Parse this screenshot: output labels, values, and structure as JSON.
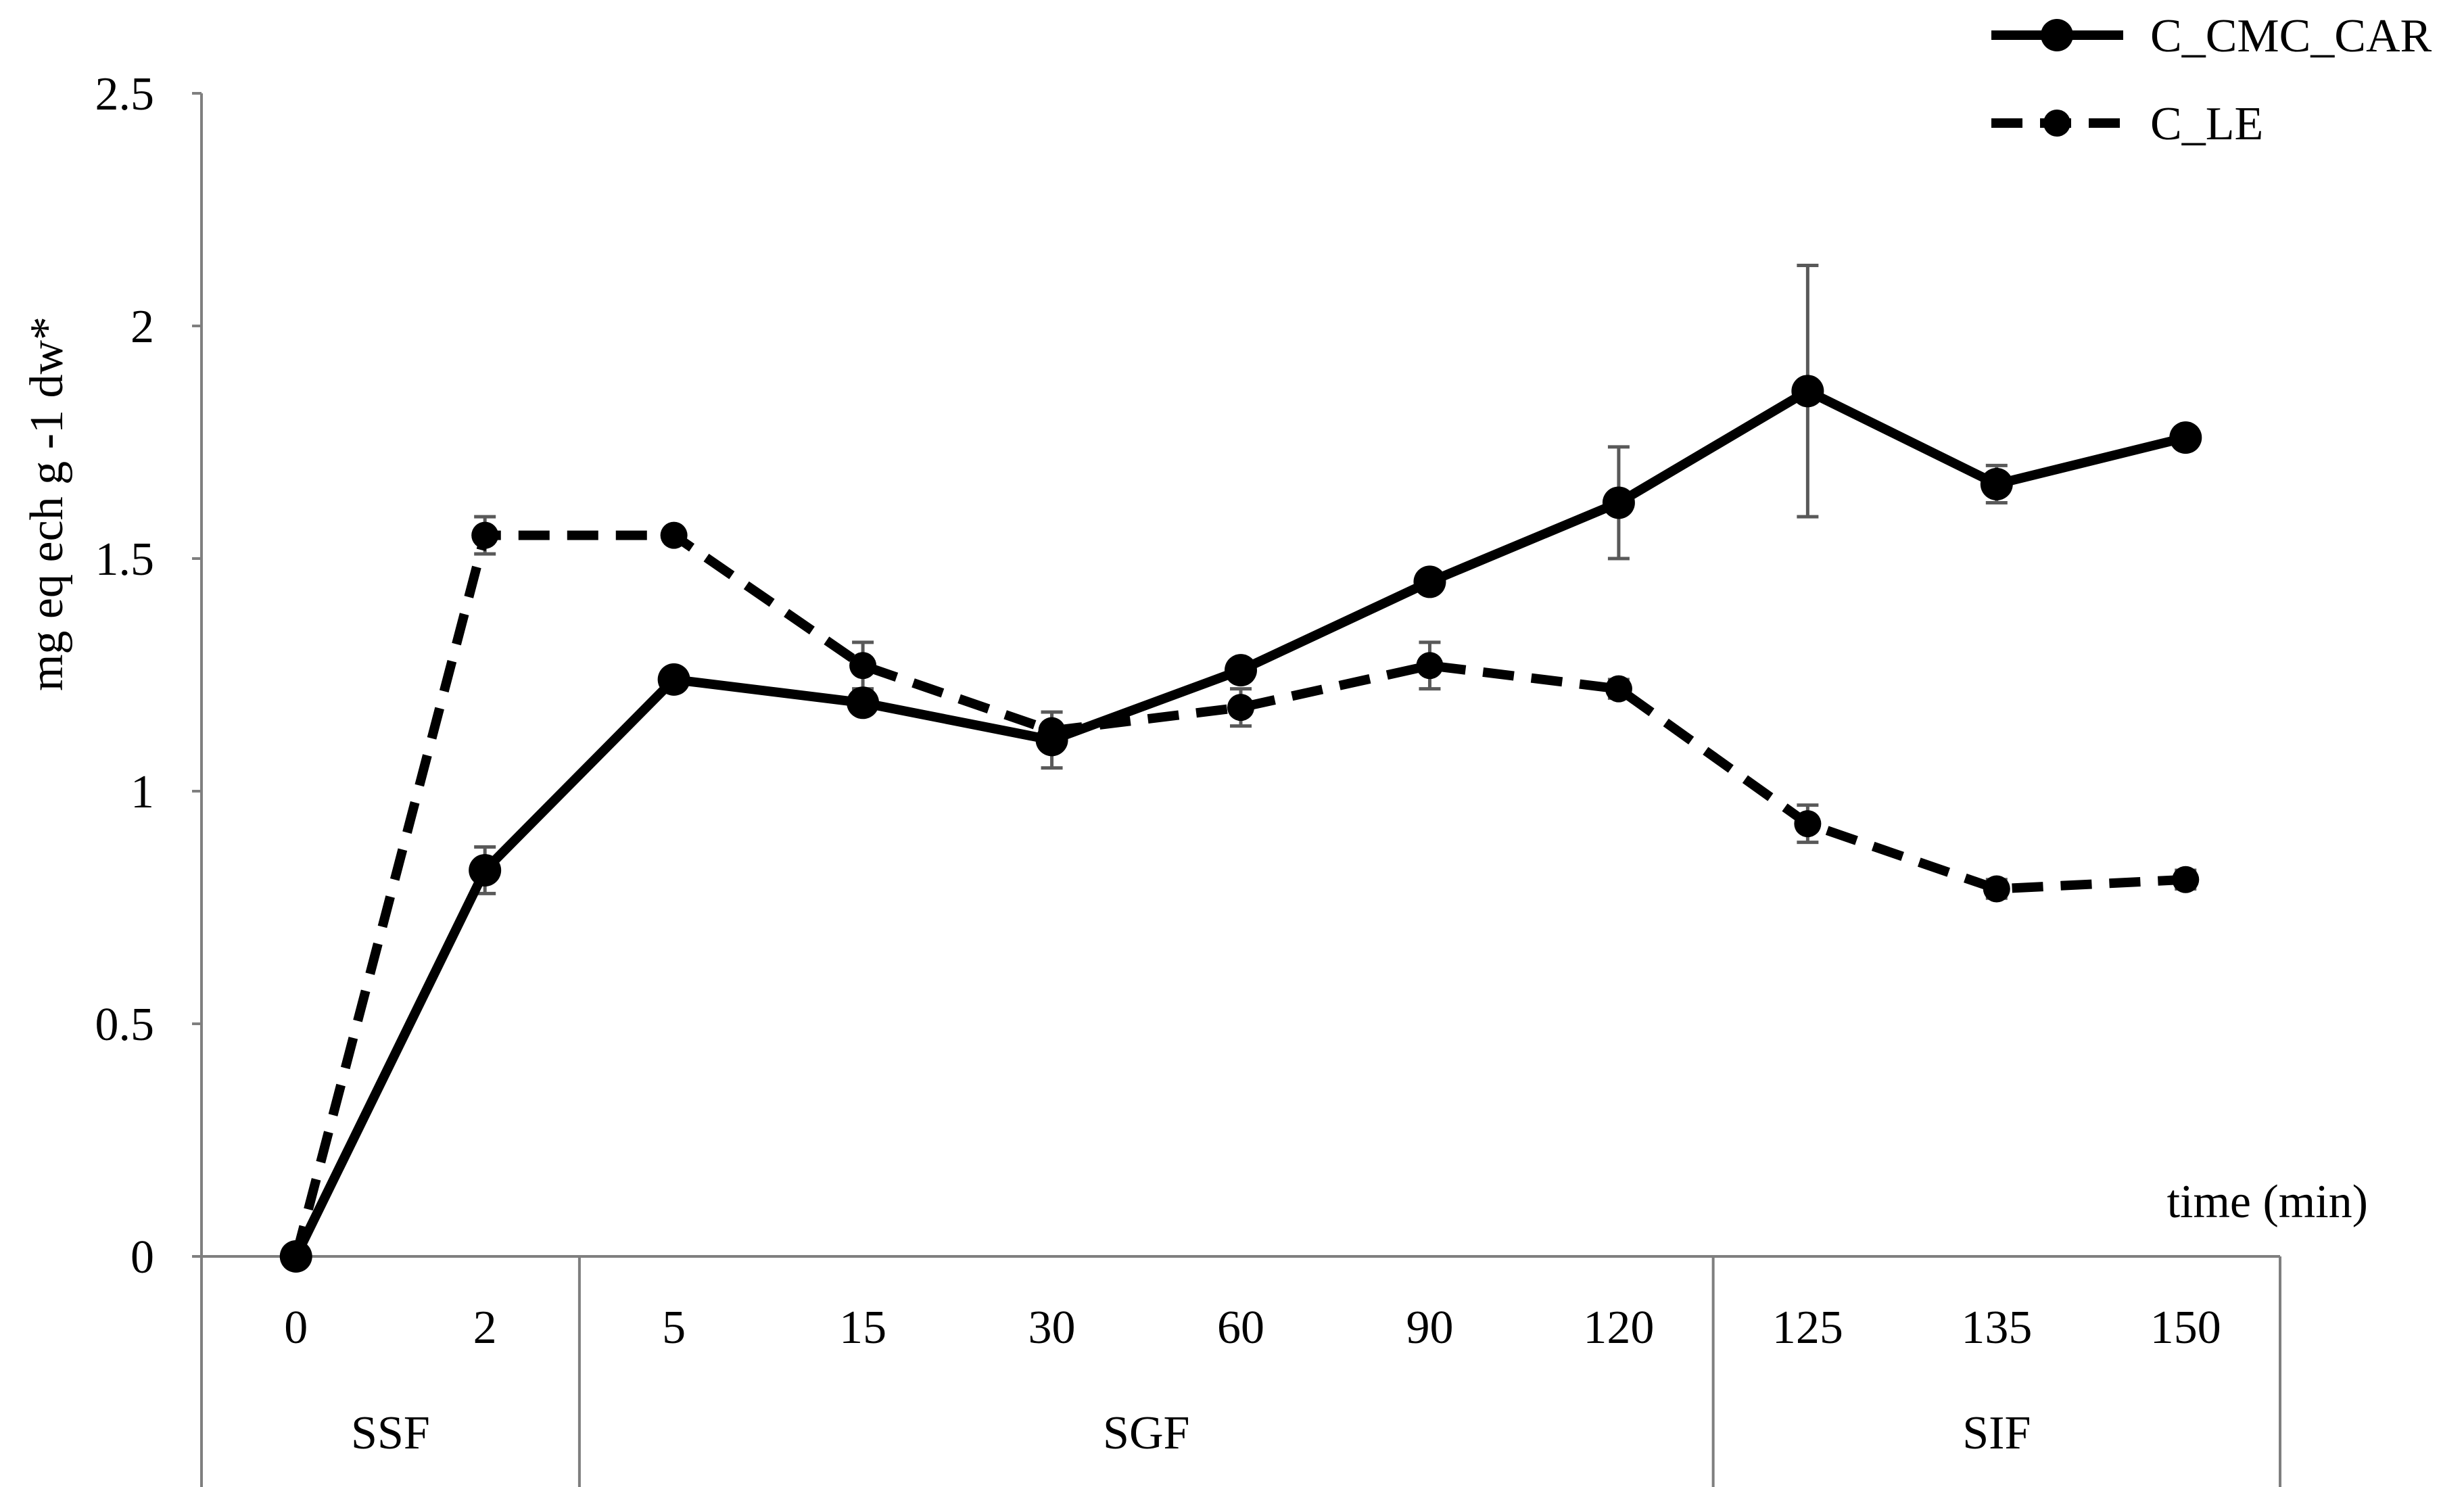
{
  "chart_data": {
    "type": "line",
    "ylabel": "mg eq ech g -1 dw*",
    "xlabel": "time (min)",
    "ylim": [
      0,
      2.5
    ],
    "yticks": [
      "0",
      "0.5",
      "1",
      "1.5",
      "2",
      "2.5"
    ],
    "categories": [
      "0",
      "2",
      "5",
      "15",
      "30",
      "60",
      "90",
      "120",
      "125",
      "135",
      "150"
    ],
    "phases": [
      {
        "label": "SSF",
        "categories": [
          "0",
          "2"
        ]
      },
      {
        "label": "SGF",
        "categories": [
          "5",
          "15",
          "30",
          "60",
          "90",
          "120"
        ]
      },
      {
        "label": "SIF",
        "categories": [
          "125",
          "135",
          "150"
        ]
      }
    ],
    "grid": false,
    "legend_position": "top-right",
    "series": [
      {
        "name": "C_CMC_CAR",
        "style": "solid",
        "color": "#000000",
        "values": [
          0,
          0.83,
          1.24,
          1.19,
          1.11,
          1.26,
          1.45,
          1.62,
          1.86,
          1.66,
          1.76
        ],
        "errors": [
          0,
          0.05,
          0.02,
          0.02,
          0.06,
          0.02,
          0.02,
          0.12,
          0.27,
          0.04,
          0.01
        ]
      },
      {
        "name": "C_LE",
        "style": "dashed",
        "color": "#000000",
        "values": [
          0,
          1.55,
          1.55,
          1.27,
          1.13,
          1.18,
          1.27,
          1.22,
          0.93,
          0.79,
          0.81
        ],
        "errors": [
          0,
          0.04,
          0.01,
          0.05,
          0.04,
          0.04,
          0.05,
          0.02,
          0.04,
          0.02,
          0.02
        ]
      }
    ],
    "axis_color": "#7f7f7f",
    "errorbar_color": "#595959"
  }
}
